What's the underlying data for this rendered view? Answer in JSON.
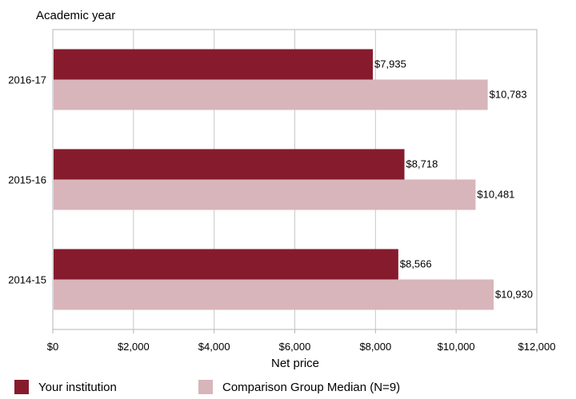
{
  "chart_data": {
    "type": "bar",
    "orientation": "horizontal",
    "y_title": "Academic year",
    "xlabel": "Net price",
    "xlim": [
      0,
      12000
    ],
    "x_ticks": [
      0,
      2000,
      4000,
      6000,
      8000,
      10000,
      12000
    ],
    "x_tick_labels": [
      "$0",
      "$2,000",
      "$4,000",
      "$6,000",
      "$8,000",
      "$10,000",
      "$12,000"
    ],
    "categories": [
      "2016-17",
      "2015-16",
      "2014-15"
    ],
    "grid": true,
    "legend_position": "bottom",
    "series": [
      {
        "name": "Your institution",
        "color": "#861b2d",
        "values": [
          7935,
          8718,
          8566
        ],
        "labels": [
          "$7,935",
          "$8,718",
          "$8,566"
        ]
      },
      {
        "name": "Comparison Group Median (N=9)",
        "color": "#d8b5bb",
        "values": [
          10783,
          10481,
          10930
        ],
        "labels": [
          "$10,783",
          "$10,481",
          "$10,930"
        ]
      }
    ]
  }
}
